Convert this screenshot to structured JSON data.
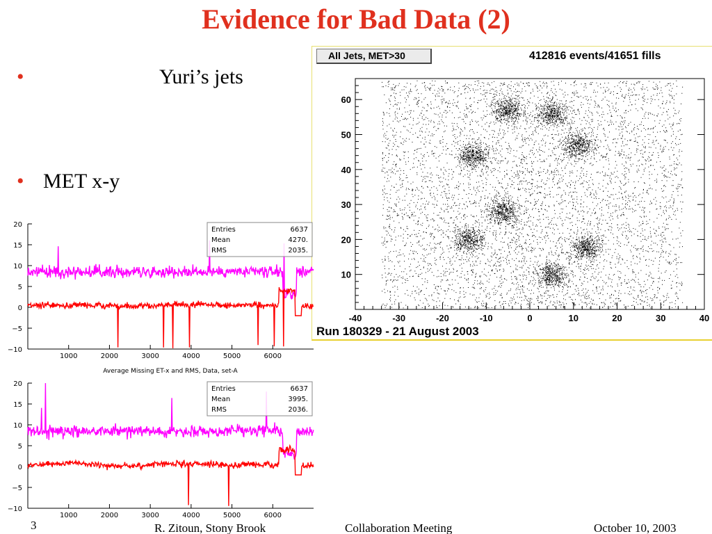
{
  "slide": {
    "title": "Evidence for Bad Data (2)",
    "bullets": [
      "Yuri’s jets",
      "MET x-y"
    ]
  },
  "scatter": {
    "tab_label": "All Jets, MET>30",
    "counts_label": "412816 events/41651 fills",
    "run_label": "Run 180329 - 21 August 2003",
    "chart_data": {
      "type": "scatter",
      "xlim": [
        -40,
        40
      ],
      "ylim": [
        0,
        66
      ],
      "x_ticks": [
        "-40",
        "-30",
        "-20",
        "-10",
        "0",
        "10",
        "20",
        "30",
        "40"
      ],
      "y_ticks": [
        "10",
        "20",
        "30",
        "40",
        "50",
        "60"
      ],
      "x_range_filled": [
        -34,
        35
      ],
      "hot_spots": [
        {
          "x": -13,
          "y": 44
        },
        {
          "x": -5,
          "y": 57
        },
        {
          "x": -6,
          "y": 28
        },
        {
          "x": -14,
          "y": 20
        },
        {
          "x": 11,
          "y": 47
        },
        {
          "x": 13,
          "y": 18
        },
        {
          "x": 5,
          "y": 10
        },
        {
          "x": 5,
          "y": 56
        }
      ]
    }
  },
  "lineplot_a": {
    "stats": {
      "entries_label": "Entries",
      "entries": "6637",
      "mean_label": "Mean",
      "mean": "4270.",
      "rms_label": "RMS",
      "rms": "2035."
    },
    "caption": "Average Missing ET-x and RMS,  Data, set-A",
    "chart_data": {
      "type": "line",
      "xlim": [
        0,
        7000
      ],
      "ylim": [
        -10,
        20
      ],
      "x_ticks": [
        "1000",
        "2000",
        "3000",
        "4000",
        "5000",
        "6000"
      ],
      "y_ticks": [
        "20",
        "15",
        "10",
        "5",
        "0",
        "−5",
        "−10"
      ],
      "series": [
        {
          "color": "#ff00ff",
          "baseline": 8.5,
          "noise": 1.5
        },
        {
          "color": "#ff0000",
          "baseline": 0.5,
          "noise": 0.8
        }
      ]
    }
  },
  "lineplot_b": {
    "stats": {
      "entries_label": "Entries",
      "entries": "6637",
      "mean_label": "Mean",
      "mean": "3995.",
      "rms_label": "RMS",
      "rms": "2036."
    },
    "chart_data": {
      "type": "line",
      "xlim": [
        0,
        7000
      ],
      "ylim": [
        -10,
        20
      ],
      "x_ticks": [
        "1000",
        "2000",
        "3000",
        "4000",
        "5000",
        "6000"
      ],
      "y_ticks": [
        "20",
        "15",
        "10",
        "5",
        "0",
        "−5",
        "−10"
      ],
      "series": [
        {
          "color": "#ff00ff",
          "baseline": 8.5,
          "noise": 1.5
        },
        {
          "color": "#ff0000",
          "baseline": 0.5,
          "noise": 0.8
        }
      ]
    }
  },
  "footer": {
    "page": "3",
    "author": "R. Zitoun, Stony Brook",
    "meeting": "Collaboration Meeting",
    "date": "October 10, 2003"
  },
  "colors": {
    "title": "#e0301e",
    "bullet": "#e0301e",
    "magenta": "#ff00ff",
    "red": "#ff0000"
  }
}
